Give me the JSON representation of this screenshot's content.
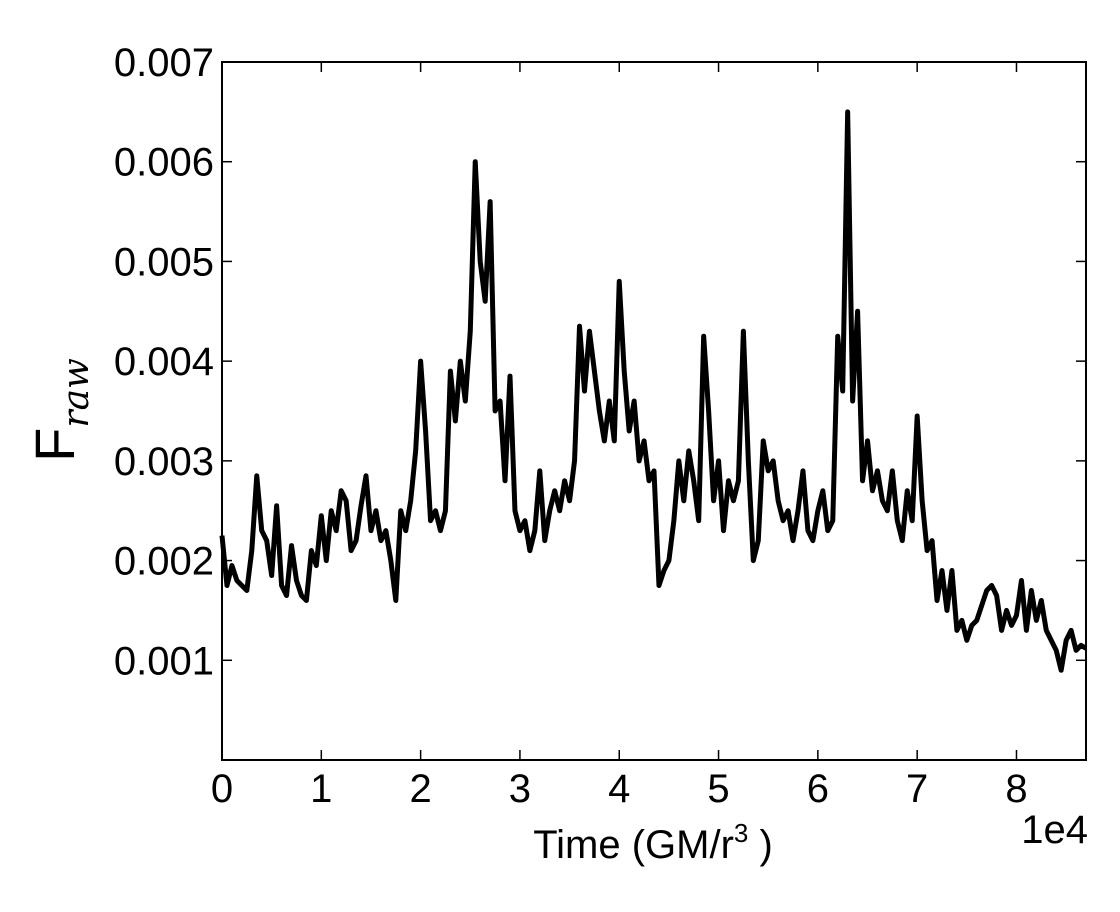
{
  "chart_data": {
    "type": "line",
    "ylabel": {
      "main": "F",
      "sub": "raw"
    },
    "xlabel": {
      "text": "Time (GM/r",
      "sup": "3",
      "tail": " )"
    },
    "x_offset_label": "1e4",
    "xlim": [
      0,
      8.7
    ],
    "ylim": [
      0,
      0.007
    ],
    "xticks": [
      0,
      1,
      2,
      3,
      4,
      5,
      6,
      7,
      8
    ],
    "yticks": [
      0.001,
      0.002,
      0.003,
      0.004,
      0.005,
      0.006,
      0.007
    ],
    "x": [
      0,
      0.05,
      0.1,
      0.15,
      0.2,
      0.25,
      0.3,
      0.35,
      0.4,
      0.45,
      0.5,
      0.55,
      0.6,
      0.65,
      0.7,
      0.75,
      0.8,
      0.85,
      0.9,
      0.95,
      1,
      1.05,
      1.1,
      1.15,
      1.2,
      1.25,
      1.3,
      1.35,
      1.4,
      1.45,
      1.5,
      1.55,
      1.6,
      1.65,
      1.7,
      1.75,
      1.8,
      1.85,
      1.9,
      1.95,
      2,
      2.05,
      2.1,
      2.15,
      2.2,
      2.25,
      2.3,
      2.35,
      2.4,
      2.45,
      2.5,
      2.55,
      2.6,
      2.65,
      2.7,
      2.75,
      2.8,
      2.85,
      2.9,
      2.95,
      3,
      3.05,
      3.1,
      3.15,
      3.2,
      3.25,
      3.3,
      3.35,
      3.4,
      3.45,
      3.5,
      3.55,
      3.6,
      3.65,
      3.7,
      3.75,
      3.8,
      3.85,
      3.9,
      3.95,
      4,
      4.05,
      4.1,
      4.15,
      4.2,
      4.25,
      4.3,
      4.35,
      4.4,
      4.45,
      4.5,
      4.55,
      4.6,
      4.65,
      4.7,
      4.75,
      4.8,
      4.85,
      4.9,
      4.95,
      5,
      5.05,
      5.1,
      5.15,
      5.2,
      5.25,
      5.3,
      5.35,
      5.4,
      5.45,
      5.5,
      5.55,
      5.6,
      5.65,
      5.7,
      5.75,
      5.8,
      5.85,
      5.9,
      5.95,
      6,
      6.05,
      6.1,
      6.15,
      6.2,
      6.25,
      6.3,
      6.35,
      6.4,
      6.45,
      6.5,
      6.55,
      6.6,
      6.65,
      6.7,
      6.75,
      6.8,
      6.85,
      6.9,
      6.95,
      7,
      7.05,
      7.1,
      7.15,
      7.2,
      7.25,
      7.3,
      7.35,
      7.4,
      7.45,
      7.5,
      7.55,
      7.6,
      7.65,
      7.7,
      7.75,
      7.8,
      7.85,
      7.9,
      7.95,
      8,
      8.05,
      8.1,
      8.15,
      8.2,
      8.25,
      8.3,
      8.35,
      8.4,
      8.45,
      8.5,
      8.55,
      8.6,
      8.65,
      8.7
    ],
    "series": [
      {
        "color": "#000000",
        "values": [
          0.00225,
          0.00175,
          0.00195,
          0.0018,
          0.00175,
          0.0017,
          0.0021,
          0.00285,
          0.0023,
          0.0022,
          0.00185,
          0.00255,
          0.00175,
          0.00165,
          0.00215,
          0.0018,
          0.00165,
          0.0016,
          0.0021,
          0.00195,
          0.00245,
          0.002,
          0.0025,
          0.0023,
          0.0027,
          0.0026,
          0.0021,
          0.0022,
          0.00255,
          0.00285,
          0.0023,
          0.0025,
          0.0022,
          0.0023,
          0.002,
          0.0016,
          0.0025,
          0.0023,
          0.0026,
          0.0031,
          0.004,
          0.0033,
          0.0024,
          0.0025,
          0.0023,
          0.0025,
          0.0039,
          0.0034,
          0.004,
          0.0036,
          0.0043,
          0.006,
          0.005,
          0.0046,
          0.0056,
          0.0035,
          0.0036,
          0.0028,
          0.00385,
          0.0025,
          0.0023,
          0.0024,
          0.0021,
          0.0023,
          0.0029,
          0.0022,
          0.0025,
          0.0027,
          0.0025,
          0.0028,
          0.0026,
          0.003,
          0.00435,
          0.0037,
          0.0043,
          0.0039,
          0.0035,
          0.0032,
          0.0036,
          0.0032,
          0.0048,
          0.0039,
          0.0033,
          0.0036,
          0.003,
          0.0032,
          0.0028,
          0.0029,
          0.00175,
          0.0019,
          0.002,
          0.0024,
          0.003,
          0.0026,
          0.0031,
          0.0028,
          0.0024,
          0.00425,
          0.0035,
          0.0026,
          0.003,
          0.0023,
          0.0028,
          0.0026,
          0.0028,
          0.0043,
          0.003,
          0.002,
          0.0022,
          0.0032,
          0.0029,
          0.003,
          0.0026,
          0.0024,
          0.0025,
          0.0022,
          0.0025,
          0.0029,
          0.0023,
          0.0022,
          0.0025,
          0.0027,
          0.0023,
          0.0024,
          0.00425,
          0.0037,
          0.0065,
          0.0036,
          0.0045,
          0.0028,
          0.0032,
          0.0027,
          0.0029,
          0.0026,
          0.0025,
          0.0029,
          0.0024,
          0.0022,
          0.0027,
          0.0024,
          0.00345,
          0.0026,
          0.0021,
          0.0022,
          0.0016,
          0.0019,
          0.0015,
          0.0019,
          0.0013,
          0.0014,
          0.0012,
          0.00135,
          0.0014,
          0.00155,
          0.0017,
          0.00175,
          0.00165,
          0.0013,
          0.0015,
          0.00135,
          0.00145,
          0.0018,
          0.0013,
          0.0017,
          0.0014,
          0.0016,
          0.0013,
          0.0012,
          0.0011,
          0.0009,
          0.0012,
          0.0013,
          0.0011,
          0.00115,
          0.00112
        ]
      }
    ]
  }
}
